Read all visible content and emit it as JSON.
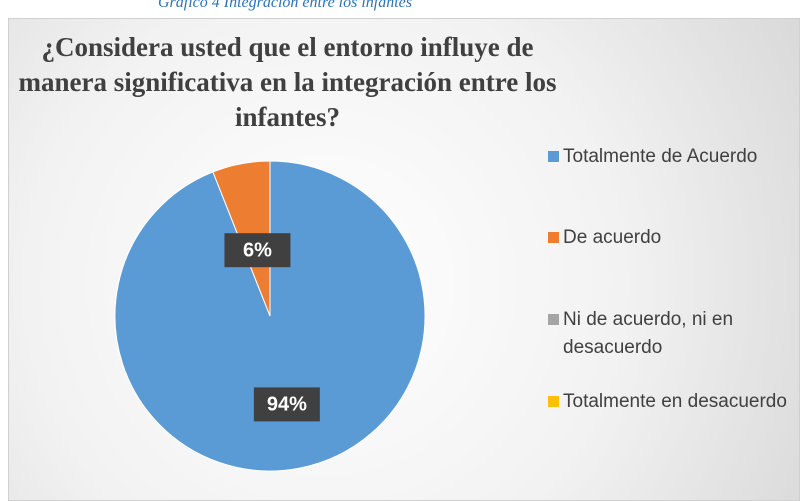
{
  "caption": "Gráfico 4 Integración entre los infantes",
  "chart_data": {
    "type": "pie",
    "title": "¿Considera usted que el entorno influye de manera significativa en la integración entre los infantes?",
    "categories": [
      "Totalmente de Acuerdo",
      "De acuerdo",
      "Ni de acuerdo, ni en desacuerdo",
      "Totalmente en desacuerdo"
    ],
    "values": [
      94,
      6,
      0,
      0
    ],
    "value_labels": [
      "94%",
      "6%",
      null,
      null
    ],
    "colors": [
      "#5b9bd5",
      "#ed7d31",
      "#a5a5a5",
      "#ffc000"
    ],
    "legend": "right"
  }
}
